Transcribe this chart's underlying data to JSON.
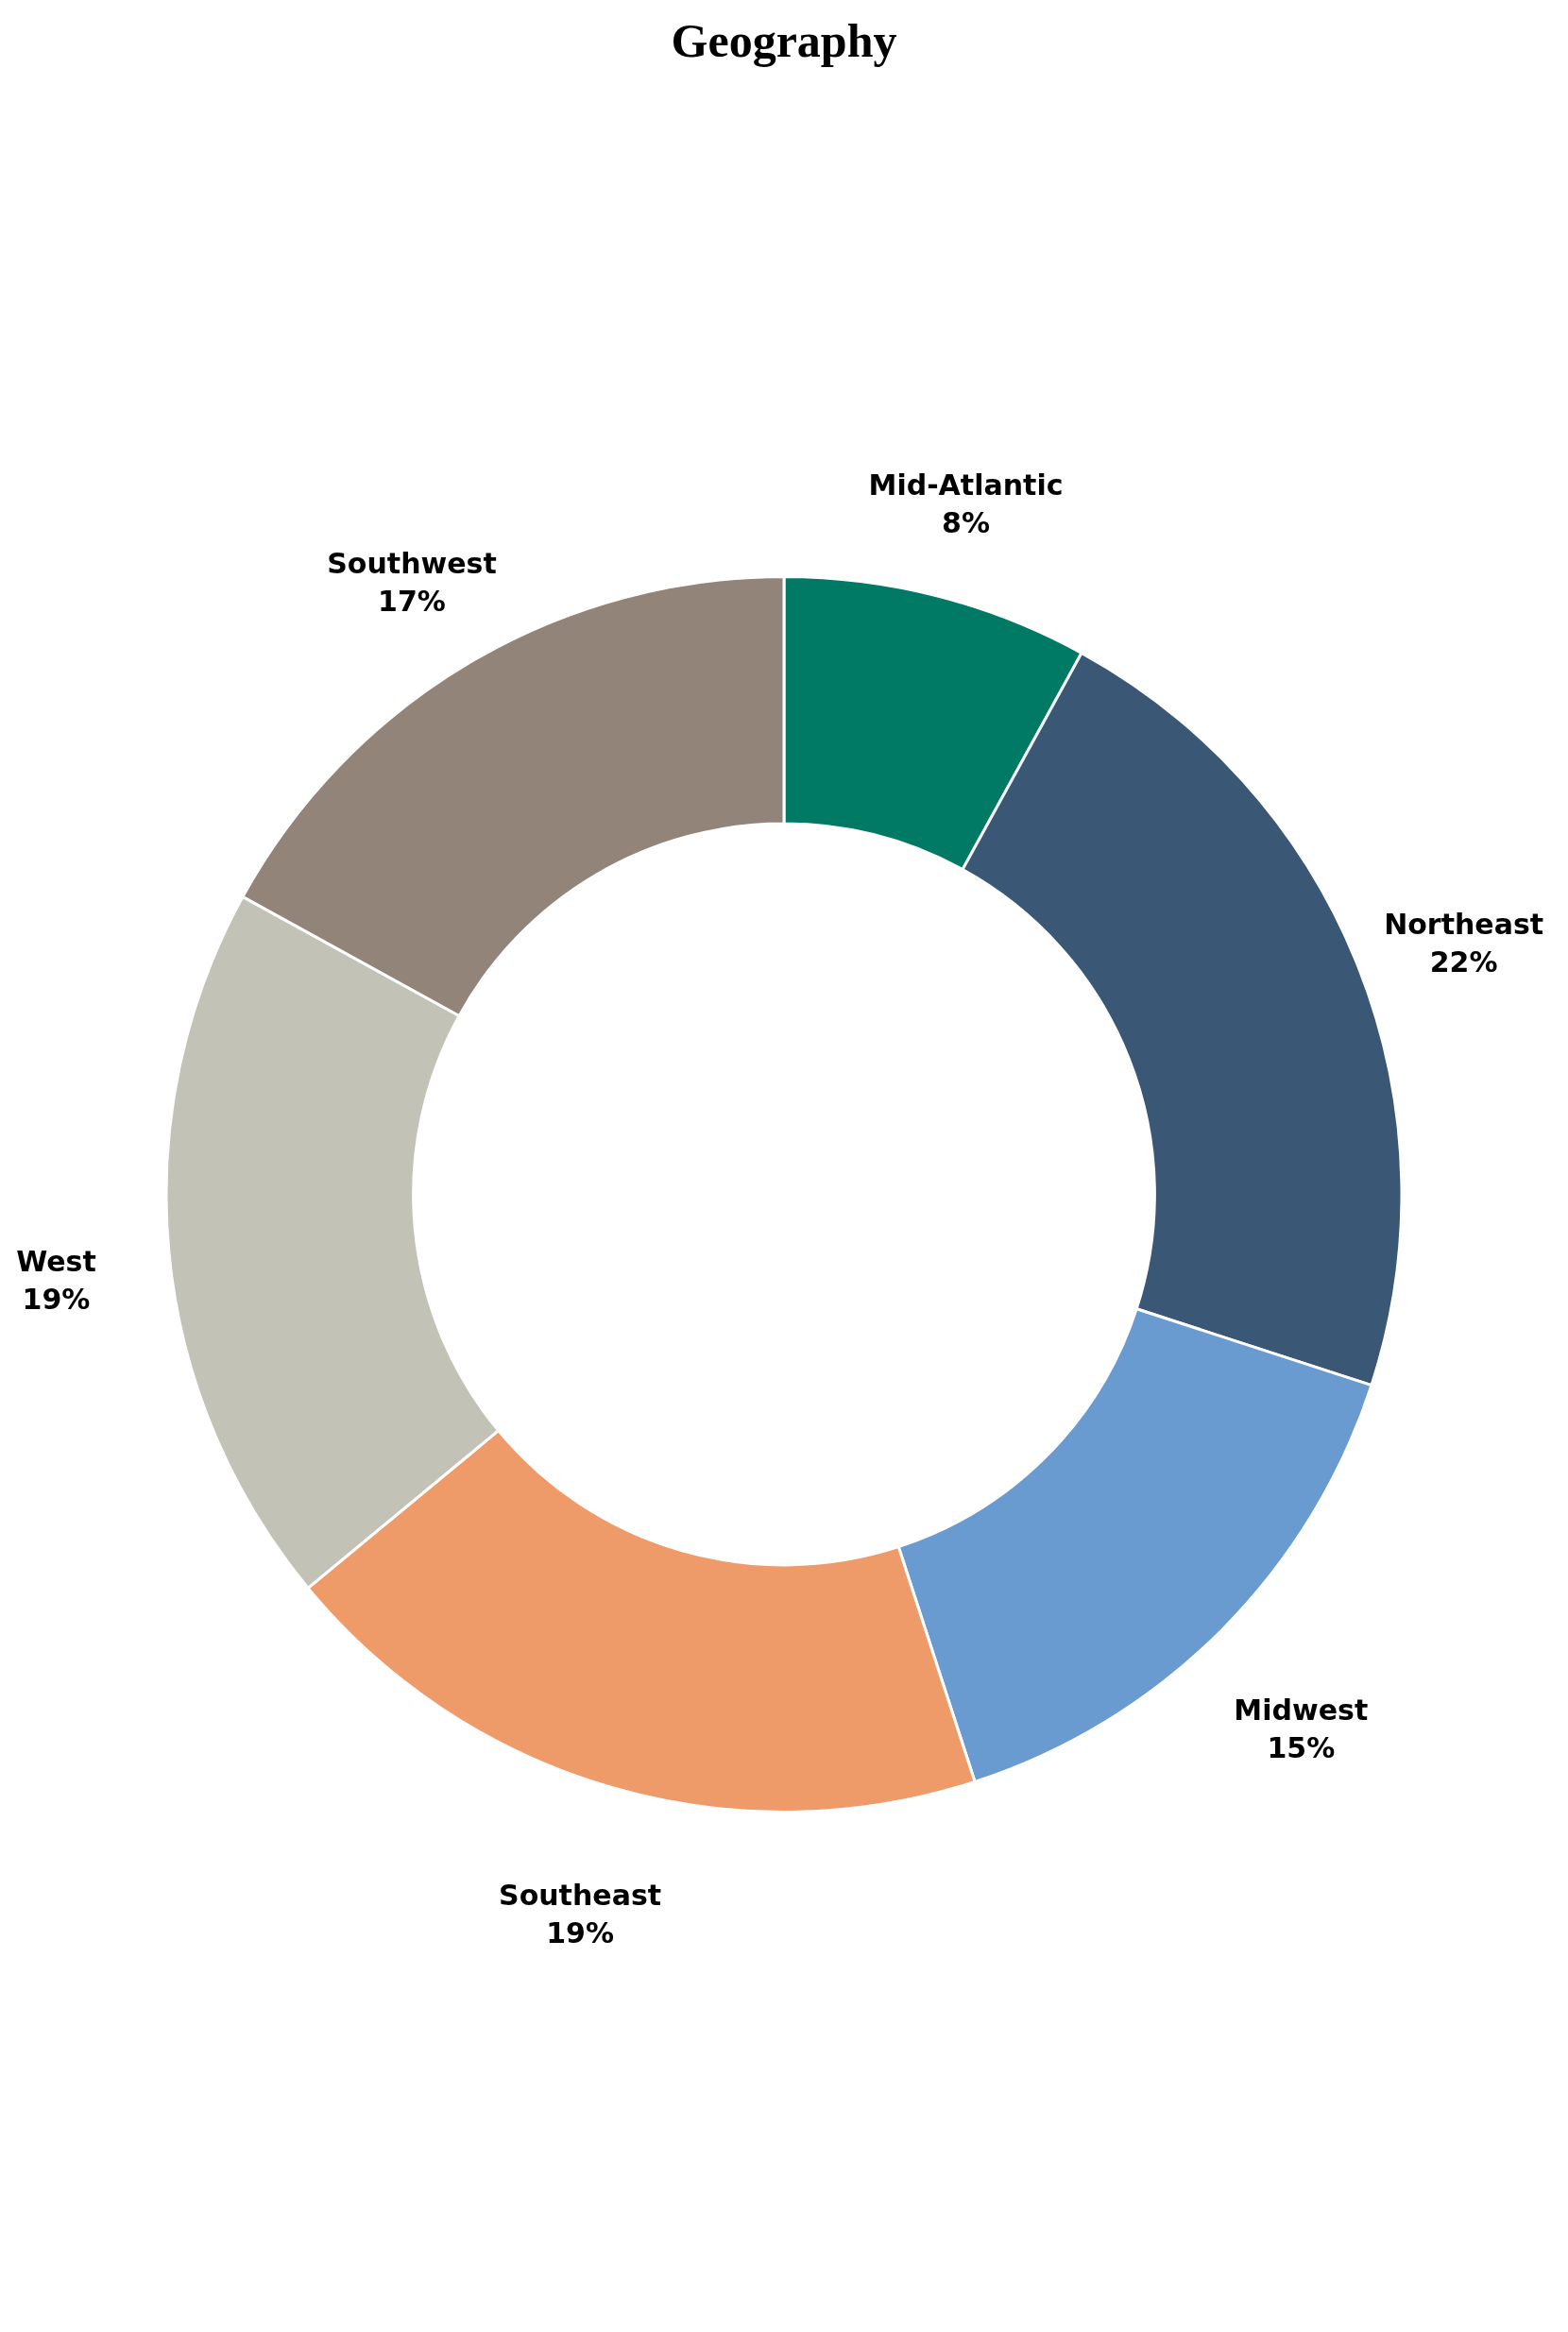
{
  "chart_data": {
    "type": "donut",
    "title": "Geography",
    "categories": [
      "Mid-Atlantic",
      "Northeast",
      "Midwest",
      "Southeast",
      "West",
      "Southwest"
    ],
    "values": [
      8,
      22,
      15,
      19,
      19,
      17
    ],
    "value_labels": [
      "8%",
      "22%",
      "15%",
      "19%",
      "19%",
      "17%"
    ],
    "colors": [
      "#007a65",
      "#3a5875",
      "#6a9bd0",
      "#ee9a69",
      "#c2c3b6",
      "#928479"
    ],
    "legend": false
  }
}
